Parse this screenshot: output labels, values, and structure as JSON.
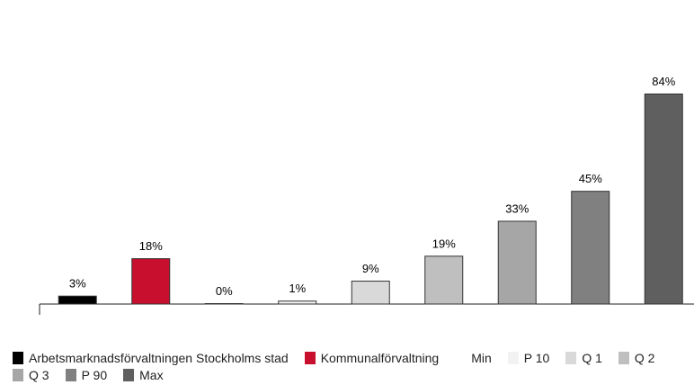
{
  "chart_data": {
    "type": "bar",
    "categories": [
      "Arbetsmarknadsförvaltningen Stockholms stad",
      "Kommunalförvaltning",
      "Min",
      "P 10",
      "Q 1",
      "Q 2",
      "Q 3",
      "P 90",
      "Max"
    ],
    "values": [
      3,
      18,
      0,
      1,
      9,
      19,
      33,
      45,
      84
    ],
    "value_labels": [
      "3%",
      "18%",
      "0%",
      "1%",
      "9%",
      "19%",
      "33%",
      "45%",
      "84%"
    ],
    "colors": [
      "#000000",
      "#c8102e",
      "#ffffff",
      "#f2f2f2",
      "#d9d9d9",
      "#bfbfbf",
      "#a6a6a6",
      "#808080",
      "#5f5f5f"
    ]
  }
}
